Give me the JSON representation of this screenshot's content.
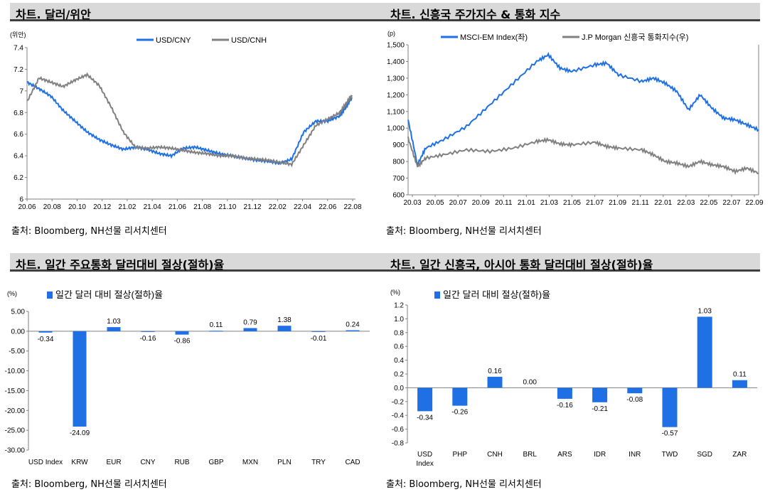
{
  "panels": [
    {
      "title": "차트. 달러/위안",
      "source": "출처: Bloomberg, NH선물 리서치센터",
      "unit": "(위안)",
      "legend": [
        "USD/CNY",
        "USD/CNH"
      ],
      "series_colors": [
        "#1f6fe5",
        "#808080"
      ]
    },
    {
      "title": "차트. 신흥국 주가지수 & 통화 지수",
      "source": "출처: Bloomberg, NH선물 리서치센터",
      "unit": "(p)",
      "legend": [
        "MSCI-EM Index(좌)",
        "J.P Morgan 신흥국 통화지수(우)"
      ],
      "series_colors": [
        "#1f6fe5",
        "#808080"
      ]
    },
    {
      "title": "차트. 일간 주요통화 달러대비 절상(절하)율",
      "source": "출처: Bloomberg, NH선물 리서치센터",
      "unit": "(%)",
      "legend": [
        "일간 달러 대비 절상(절하)율"
      ],
      "series_colors": [
        "#1f6fe5"
      ]
    },
    {
      "title": "차트. 일간 신흥국, 아시아 통화 달러대비 절상(절하)율",
      "source": "출처: Bloomberg, NH선물 리서치센터",
      "unit": "(%)",
      "legend": [
        "일간 달러 대비 절상(절하)율"
      ],
      "series_colors": [
        "#1f6fe5"
      ]
    }
  ],
  "chart_data": [
    {
      "type": "line",
      "x_ticks": [
        "20.06",
        "20.08",
        "20.10",
        "20.12",
        "21.02",
        "21.04",
        "21.06",
        "21.08",
        "21.10",
        "21.12",
        "22.02",
        "22.04",
        "22.06",
        "22.08"
      ],
      "y_ticks": [
        "6",
        "6.2",
        "6.4",
        "6.6",
        "6.8",
        "7",
        "7.2",
        "7.4"
      ],
      "ylim": [
        6.0,
        7.4
      ],
      "xlim": [
        0,
        27.3
      ],
      "series": [
        {
          "name": "USD/CNY",
          "x": [
            0,
            1,
            2,
            3,
            4,
            5,
            6,
            7,
            8,
            9,
            10,
            11,
            12,
            13,
            14,
            15,
            16,
            17,
            18,
            19,
            20,
            21,
            22,
            23,
            24,
            25,
            26,
            26.5,
            27
          ],
          "y": [
            7.08,
            7.02,
            6.95,
            6.82,
            6.72,
            6.62,
            6.55,
            6.5,
            6.46,
            6.48,
            6.46,
            6.42,
            6.4,
            6.47,
            6.48,
            6.45,
            6.42,
            6.4,
            6.38,
            6.36,
            6.35,
            6.33,
            6.37,
            6.62,
            6.72,
            6.72,
            6.77,
            6.85,
            6.94
          ]
        },
        {
          "name": "USD/CNH",
          "x": [
            0,
            1,
            2,
            3,
            4,
            5,
            6,
            7,
            8,
            9,
            10,
            11,
            12,
            13,
            14,
            15,
            16,
            17,
            18,
            19,
            20,
            21,
            22,
            23,
            24,
            25,
            26,
            26.5,
            27
          ],
          "y": [
            6.9,
            7.12,
            7.08,
            7.04,
            7.1,
            7.15,
            7.05,
            6.85,
            6.62,
            6.48,
            6.47,
            6.48,
            6.47,
            6.45,
            6.43,
            6.42,
            6.4,
            6.4,
            6.38,
            6.37,
            6.36,
            6.34,
            6.32,
            6.5,
            6.68,
            6.74,
            6.8,
            6.88,
            6.96
          ]
        }
      ]
    },
    {
      "type": "line",
      "x_ticks": [
        "20.03",
        "20.05",
        "20.07",
        "20.09",
        "20.11",
        "21.01",
        "21.03",
        "21.05",
        "21.07",
        "21.09",
        "21.11",
        "22.01",
        "22.03",
        "22.05",
        "22.07",
        "22.09"
      ],
      "y_ticks": [
        "600",
        "700",
        "800",
        "900",
        "1,000",
        "1,100",
        "1,200",
        "1,300",
        "1,400",
        "1,500"
      ],
      "ylim": [
        600,
        1500
      ],
      "xlim": [
        0,
        30
      ],
      "series": [
        {
          "name": "MSCI-EM Index(좌)",
          "axis": "left",
          "x": [
            0,
            0.8,
            1.5,
            3,
            5,
            7,
            9,
            11,
            12,
            13,
            14,
            16,
            17,
            18,
            20,
            21,
            22,
            23,
            24,
            25,
            26,
            27,
            28,
            29,
            30
          ],
          "y": [
            1050,
            780,
            880,
            930,
            1010,
            1140,
            1270,
            1400,
            1440,
            1360,
            1340,
            1380,
            1390,
            1320,
            1280,
            1300,
            1270,
            1220,
            1110,
            1200,
            1120,
            1060,
            1050,
            1020,
            990
          ]
        },
        {
          "name": "J.P Morgan 신흥국 통화지수(우)",
          "axis": "right",
          "x": [
            0,
            0.8,
            1.5,
            3,
            5,
            7,
            9,
            11,
            12,
            13,
            14,
            16,
            17,
            18,
            20,
            21,
            22,
            23,
            24,
            25,
            26,
            27,
            28,
            29,
            30
          ],
          "y": [
            940,
            770,
            820,
            840,
            870,
            860,
            880,
            920,
            930,
            905,
            900,
            915,
            890,
            880,
            870,
            840,
            800,
            790,
            770,
            800,
            780,
            770,
            740,
            760,
            730
          ]
        }
      ]
    },
    {
      "type": "bar",
      "categories": [
        "USD Index",
        "KRW",
        "EUR",
        "CNY",
        "RUB",
        "GBP",
        "MXN",
        "PLN",
        "TRY",
        "CAD"
      ],
      "values": [
        -0.34,
        -24.09,
        1.03,
        -0.16,
        -0.86,
        0.11,
        0.79,
        1.38,
        -0.01,
        0.24
      ],
      "labels": [
        "-0.34",
        "-24.09",
        "1.03",
        "-0.16",
        "-0.86",
        "0.11",
        "0.79",
        "1.38",
        "-0.01",
        "0.24"
      ],
      "y_ticks": [
        "5.00",
        "0.00",
        "-5.00",
        "-10.00",
        "-15.00",
        "-20.00",
        "-25.00",
        "-30.00"
      ],
      "ylim": [
        -30,
        5
      ]
    },
    {
      "type": "bar",
      "categories": [
        "USD Index",
        "PHP",
        "CNH",
        "BRL",
        "ARS",
        "IDR",
        "INR",
        "TWD",
        "SGD",
        "ZAR"
      ],
      "values": [
        -0.34,
        -0.26,
        0.16,
        0.0,
        -0.16,
        -0.21,
        -0.08,
        -0.57,
        1.03,
        0.11
      ],
      "labels": [
        "-0.34",
        "-0.26",
        "0.16",
        "0.00",
        "-0.16",
        "-0.21",
        "-0.08",
        "-0.57",
        "1.03",
        "0.11"
      ],
      "y_ticks": [
        "1.2",
        "1.0",
        "0.8",
        "0.6",
        "0.4",
        "0.2",
        "0.0",
        "-0.2",
        "-0.4",
        "-0.6",
        "-0.8"
      ],
      "ylim": [
        -0.8,
        1.2
      ]
    }
  ]
}
